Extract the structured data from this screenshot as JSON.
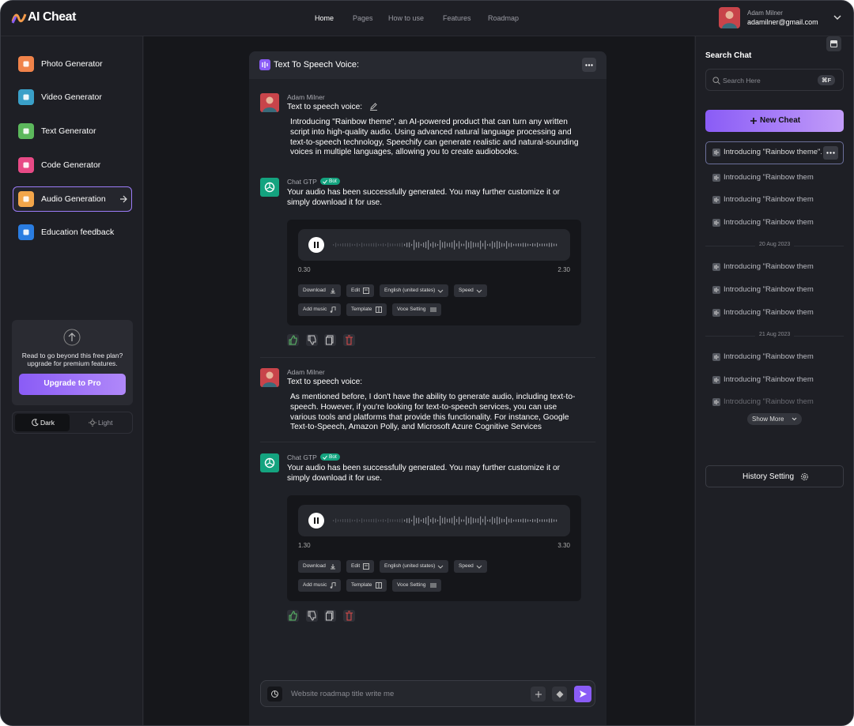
{
  "header": {
    "logo": "AI Cheat",
    "nav": [
      "Home",
      "Pages",
      "How to use",
      "Features",
      "Roadmap"
    ],
    "user_name": "Adam Milner",
    "user_email": "adamilner@gmail.com"
  },
  "sidebar": {
    "items": [
      "Photo Generator",
      "Video Generator",
      "Text Generator",
      "Code Generator",
      "Audio Generation",
      "Education feedback"
    ],
    "promo": "Read to go beyond this free plan? upgrade for premium features.",
    "upgrade": "Upgrade to Pro",
    "themes": [
      "Dark",
      "Light"
    ]
  },
  "chat": {
    "title": "Text To Speech Voice:",
    "messages": [
      {
        "author": "Adam Milner",
        "subject": "Text to speech voice:",
        "text": "Introducing \"Rainbow theme\", an AI-powered product that can turn any written script into high-quality audio. Using advanced natural language processing and text-to-speech technology, Speechify can generate realistic and natural-sounding voices in multiple languages, allowing you to create audiobooks."
      },
      {
        "author": "Chat GTP",
        "badge": "Bot",
        "text": "Your audio has been successfully generated. You may further customize it or simply download it for use.",
        "audio": {
          "start": "0.30",
          "end": "2.30",
          "buttons": [
            "Download",
            "Edit",
            "English (united states)",
            "Speed",
            "Add music",
            "Template",
            "Voce Setting"
          ]
        }
      },
      {
        "author": "Adam Milner",
        "subject": "Text to speech voice:",
        "text": "As mentioned before, I don't have the ability to generate audio, including text-to-speech. However, if you're looking for text-to-speech services, you can use various tools and platforms that provide this functionality. For instance, Google Text-to-Speech, Amazon Polly, and Microsoft Azure Cognitive Services"
      },
      {
        "author": "Chat GTP",
        "badge": "Bot",
        "text": "Your audio has been successfully generated. You may further customize it or simply download it for use.",
        "audio": {
          "start": "1.30",
          "end": "3.30",
          "buttons": [
            "Download",
            "Edit",
            "English (united states)",
            "Speed",
            "Add music",
            "Template",
            "Voce Setting"
          ]
        }
      }
    ],
    "input_placeholder": "Website roadmap title write me"
  },
  "history": {
    "title": "Search Chat",
    "search_placeholder": "Search Here",
    "shortcut": "⌘F",
    "new_chat": "New Cheat",
    "groups": [
      {
        "items": [
          "Introducing \"Rainbow theme\".",
          "Introducing \"Rainbow them",
          "Introducing \"Rainbow them",
          "Introducing \"Rainbow them"
        ]
      },
      {
        "date": "20 Aug 2023",
        "items": [
          "Introducing \"Rainbow them",
          "Introducing \"Rainbow them",
          "Introducing \"Rainbow them"
        ]
      },
      {
        "date": "21 Aug 2023",
        "items": [
          "Introducing \"Rainbow them",
          "Introducing \"Rainbow them",
          "Introducing \"Rainbow them"
        ]
      }
    ],
    "show_more": "Show More",
    "setting": "History Setting"
  }
}
